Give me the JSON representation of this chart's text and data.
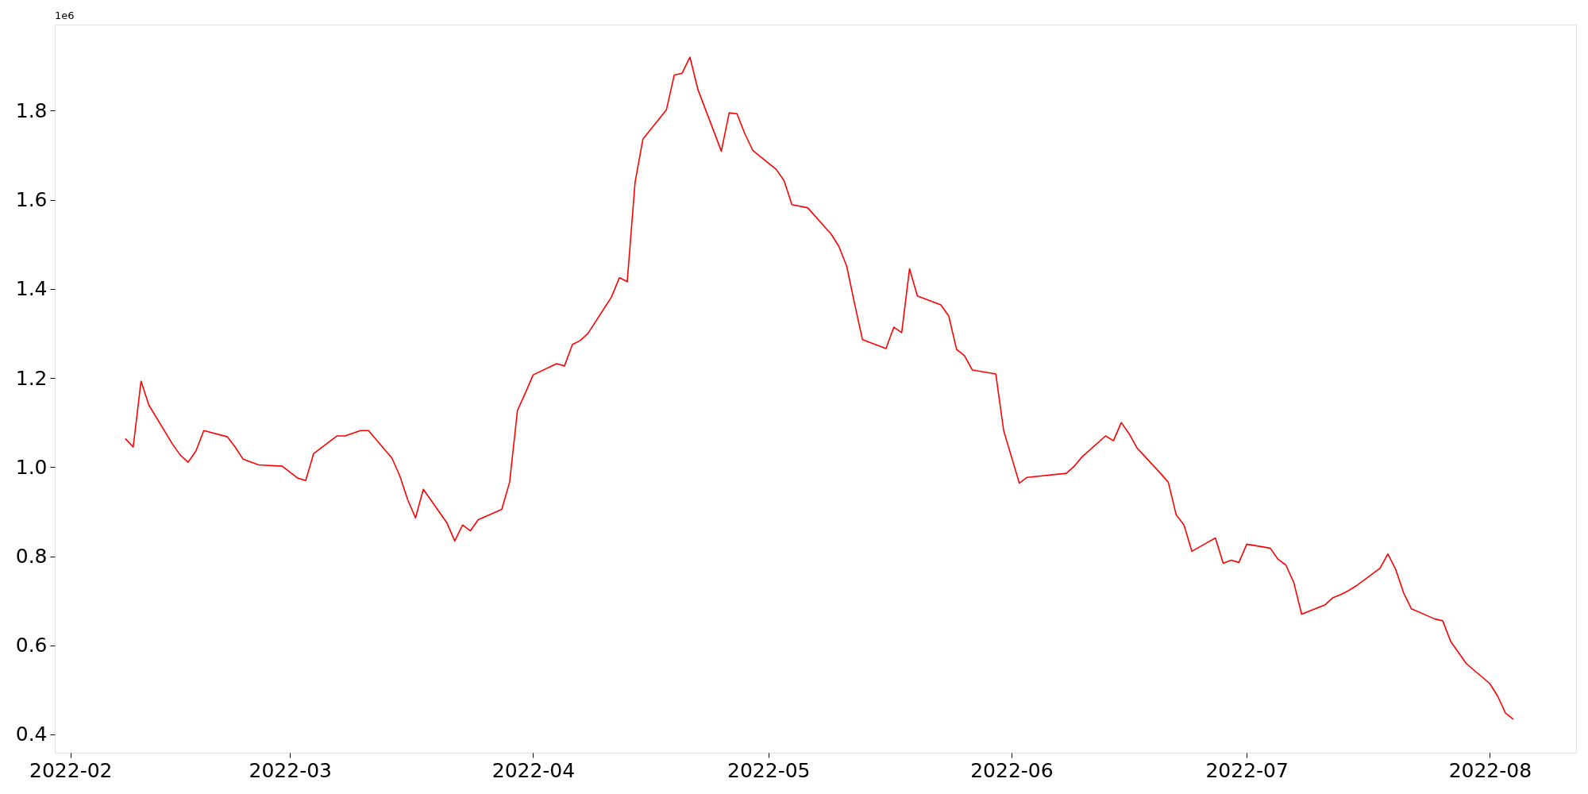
{
  "chart_data": {
    "type": "line",
    "x": [
      "2022-02-08",
      "2022-02-09",
      "2022-02-10",
      "2022-02-11",
      "2022-02-14",
      "2022-02-15",
      "2022-02-16",
      "2022-02-17",
      "2022-02-18",
      "2022-02-21",
      "2022-02-22",
      "2022-02-23",
      "2022-02-25",
      "2022-02-28",
      "2022-03-02",
      "2022-03-03",
      "2022-03-04",
      "2022-03-07",
      "2022-03-08",
      "2022-03-10",
      "2022-03-11",
      "2022-03-14",
      "2022-03-15",
      "2022-03-16",
      "2022-03-17",
      "2022-03-18",
      "2022-03-21",
      "2022-03-22",
      "2022-03-23",
      "2022-03-24",
      "2022-03-25",
      "2022-03-28",
      "2022-03-29",
      "2022-03-30",
      "2022-03-31",
      "2022-04-01",
      "2022-04-04",
      "2022-04-05",
      "2022-04-06",
      "2022-04-07",
      "2022-04-08",
      "2022-04-11",
      "2022-04-12",
      "2022-04-13",
      "2022-04-14",
      "2022-04-15",
      "2022-04-18",
      "2022-04-19",
      "2022-04-20",
      "2022-04-21",
      "2022-04-22",
      "2022-04-25",
      "2022-04-26",
      "2022-04-27",
      "2022-04-28",
      "2022-04-29",
      "2022-05-02",
      "2022-05-03",
      "2022-05-04",
      "2022-05-06",
      "2022-05-09",
      "2022-05-10",
      "2022-05-11",
      "2022-05-12",
      "2022-05-13",
      "2022-05-16",
      "2022-05-17",
      "2022-05-18",
      "2022-05-19",
      "2022-05-20",
      "2022-05-23",
      "2022-05-24",
      "2022-05-25",
      "2022-05-26",
      "2022-05-27",
      "2022-05-30",
      "2022-05-31",
      "2022-06-02",
      "2022-06-03",
      "2022-06-08",
      "2022-06-09",
      "2022-06-10",
      "2022-06-13",
      "2022-06-14",
      "2022-06-15",
      "2022-06-16",
      "2022-06-17",
      "2022-06-20",
      "2022-06-21",
      "2022-06-22",
      "2022-06-23",
      "2022-06-24",
      "2022-06-27",
      "2022-06-28",
      "2022-06-29",
      "2022-06-30",
      "2022-07-01",
      "2022-07-04",
      "2022-07-05",
      "2022-07-06",
      "2022-07-07",
      "2022-07-08",
      "2022-07-11",
      "2022-07-12",
      "2022-07-13",
      "2022-07-14",
      "2022-07-15",
      "2022-07-18",
      "2022-07-19",
      "2022-07-20",
      "2022-07-21",
      "2022-07-22",
      "2022-07-25",
      "2022-07-26",
      "2022-07-27",
      "2022-07-29",
      "2022-08-01",
      "2022-08-02",
      "2022-08-03",
      "2022-08-04"
    ],
    "series": [
      {
        "color": "#ff0000",
        "values": [
          1.064,
          1.045,
          1.193,
          1.139,
          1.052,
          1.027,
          1.011,
          1.036,
          1.082,
          1.068,
          1.045,
          1.018,
          1.005,
          1.002,
          0.975,
          0.97,
          1.03,
          1.07,
          1.07,
          1.082,
          1.082,
          1.02,
          0.98,
          0.927,
          0.886,
          0.95,
          0.875,
          0.834,
          0.87,
          0.857,
          0.882,
          0.905,
          0.966,
          1.127,
          1.166,
          1.207,
          1.232,
          1.227,
          1.275,
          1.284,
          1.3,
          1.382,
          1.425,
          1.416,
          1.639,
          1.736,
          1.802,
          1.88,
          1.884,
          1.92,
          1.848,
          1.709,
          1.795,
          1.793,
          1.748,
          1.711,
          1.668,
          1.643,
          1.589,
          1.582,
          1.523,
          1.495,
          1.45,
          1.366,
          1.286,
          1.266,
          1.314,
          1.302,
          1.445,
          1.384,
          1.364,
          1.339,
          1.264,
          1.25,
          1.218,
          1.209,
          1.082,
          0.964,
          0.977,
          0.986,
          1.002,
          1.023,
          1.07,
          1.059,
          1.1,
          1.075,
          1.043,
          0.986,
          0.966,
          0.893,
          0.87,
          0.811,
          0.841,
          0.784,
          0.791,
          0.786,
          0.827,
          0.818,
          0.793,
          0.78,
          0.741,
          0.67,
          0.691,
          0.707,
          0.714,
          0.723,
          0.734,
          0.773,
          0.805,
          0.77,
          0.718,
          0.682,
          0.659,
          0.655,
          0.609,
          0.559,
          0.514,
          0.486,
          0.448,
          0.434
        ]
      }
    ],
    "xlim": [
      "2022-01-30",
      "2022-08-12"
    ],
    "xticks": [
      {
        "value": "2022-02-01",
        "label": "2022-02"
      },
      {
        "value": "2022-03-01",
        "label": "2022-03"
      },
      {
        "value": "2022-04-01",
        "label": "2022-04"
      },
      {
        "value": "2022-05-01",
        "label": "2022-05"
      },
      {
        "value": "2022-06-01",
        "label": "2022-06"
      },
      {
        "value": "2022-07-01",
        "label": "2022-07"
      },
      {
        "value": "2022-08-01",
        "label": "2022-08"
      }
    ],
    "ylim": [
      0.359,
      1.993
    ],
    "yticks": [
      0.4,
      0.6,
      0.8,
      {
        "value": 1,
        "label": "1.0"
      },
      1.2,
      1.4,
      1.6,
      1.8
    ],
    "annotations": [
      "1e6"
    ],
    "grid": false
  }
}
